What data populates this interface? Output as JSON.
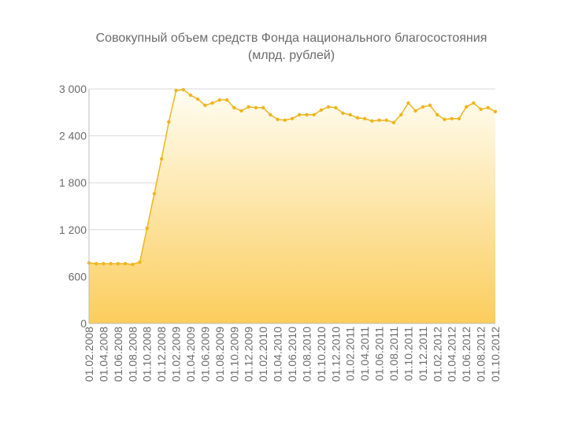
{
  "chart_data": {
    "type": "area",
    "title": "Совокупный объем средств Фонда национального благосостояния",
    "subtitle": "(млрд. рублей)",
    "categories": [
      "01.02.2008",
      null,
      "01.04.2008",
      null,
      "01.06.2008",
      null,
      "01.08.2008",
      null,
      "01.10.2008",
      null,
      "01.12.2008",
      null,
      "01.02.2009",
      null,
      "01.04.2009",
      null,
      "01.06.2009",
      null,
      "01.08.2009",
      null,
      "01.10.2009",
      null,
      "01.12.2009",
      null,
      "01.02.2010",
      null,
      "01.04.2010",
      null,
      "01.06.2010",
      null,
      "01.08.2010",
      null,
      "01.10.2010",
      null,
      "01.12.2010",
      null,
      "01.02.2011",
      null,
      "01.04.2011",
      null,
      "01.06.2011",
      null,
      "01.08.2011",
      null,
      "01.10.2011",
      null,
      "01.12.2011",
      null,
      "01.02.2012",
      null,
      "01.04.2012",
      null,
      "01.06.2012",
      null,
      "01.08.2012",
      null,
      "01.10.2012"
    ],
    "values": [
      775,
      765,
      765,
      765,
      765,
      765,
      755,
      785,
      1218,
      1660,
      2105,
      2578,
      2980,
      2990,
      2920,
      2870,
      2790,
      2820,
      2860,
      2860,
      2760,
      2720,
      2770,
      2760,
      2760,
      2670,
      2610,
      2600,
      2620,
      2670,
      2670,
      2670,
      2730,
      2770,
      2760,
      2690,
      2670,
      2630,
      2620,
      2590,
      2600,
      2600,
      2570,
      2670,
      2820,
      2720,
      2770,
      2790,
      2670,
      2610,
      2620,
      2620,
      2770,
      2820,
      2740,
      2760,
      2710
    ],
    "color": "#efb51e",
    "ylim": [
      0,
      3000
    ],
    "yticks": [
      0,
      600,
      {
        "value": 1200,
        "label": "1 200"
      },
      {
        "value": 1800,
        "label": "1 800"
      },
      {
        "value": 2400,
        "label": "2 400"
      },
      {
        "value": 3000,
        "label": "3 000"
      }
    ],
    "grid": true
  }
}
